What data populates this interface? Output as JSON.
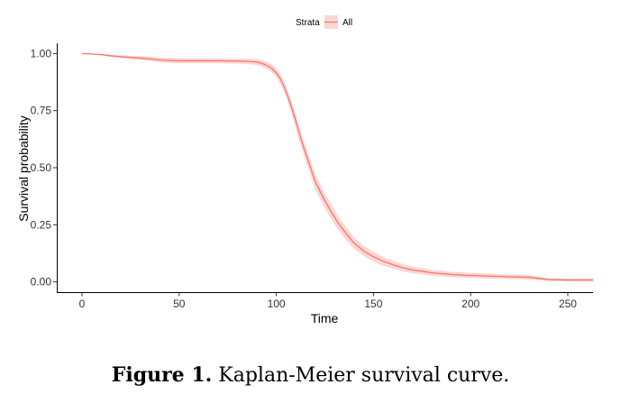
{
  "chart_data": {
    "type": "line",
    "xlabel": "Time",
    "ylabel": "Survival probability",
    "xlim": [
      -13,
      263
    ],
    "ylim": [
      -0.045,
      1.045
    ],
    "x_ticks": [
      0,
      50,
      100,
      150,
      200,
      250
    ],
    "x_tick_labels": [
      "0",
      "50",
      "100",
      "150",
      "200",
      "250"
    ],
    "y_ticks": [
      0,
      0.25,
      0.5,
      0.75,
      1
    ],
    "y_tick_labels": [
      "0.00",
      "0.25",
      "0.50",
      "0.75",
      "1.00"
    ],
    "grid": false,
    "legend": {
      "placement": "top",
      "title": "Strata",
      "entries": [
        "All"
      ]
    },
    "series": [
      {
        "name": "All",
        "color": "#f8766d",
        "band_color": "#f8766d",
        "x": [
          0,
          5,
          10,
          15,
          20,
          25,
          30,
          35,
          40,
          45,
          50,
          60,
          70,
          80,
          85,
          90,
          92,
          94,
          96,
          98,
          100,
          102,
          104,
          106,
          108,
          110,
          112,
          114,
          116,
          118,
          120,
          124,
          128,
          132,
          136,
          140,
          145,
          150,
          155,
          160,
          165,
          170,
          180,
          190,
          200,
          210,
          220,
          230,
          235,
          240,
          250,
          263
        ],
        "y": [
          1.0,
          0.998,
          0.995,
          0.99,
          0.986,
          0.983,
          0.98,
          0.977,
          0.972,
          0.97,
          0.968,
          0.968,
          0.968,
          0.967,
          0.966,
          0.963,
          0.958,
          0.952,
          0.944,
          0.932,
          0.915,
          0.89,
          0.855,
          0.81,
          0.76,
          0.705,
          0.645,
          0.59,
          0.54,
          0.49,
          0.44,
          0.37,
          0.31,
          0.255,
          0.21,
          0.17,
          0.135,
          0.11,
          0.09,
          0.075,
          0.062,
          0.052,
          0.04,
          0.032,
          0.028,
          0.025,
          0.022,
          0.02,
          0.015,
          0.01,
          0.008,
          0.008
        ],
        "lower": [
          1.0,
          0.996,
          0.991,
          0.985,
          0.98,
          0.976,
          0.972,
          0.968,
          0.962,
          0.959,
          0.957,
          0.957,
          0.957,
          0.956,
          0.954,
          0.95,
          0.944,
          0.937,
          0.928,
          0.915,
          0.896,
          0.869,
          0.832,
          0.785,
          0.733,
          0.676,
          0.615,
          0.559,
          0.508,
          0.457,
          0.407,
          0.337,
          0.278,
          0.225,
          0.182,
          0.145,
          0.112,
          0.089,
          0.071,
          0.058,
          0.046,
          0.037,
          0.027,
          0.02,
          0.017,
          0.014,
          0.012,
          0.01,
          0.007,
          0.004,
          0.002,
          0.002
        ],
        "upper": [
          1.0,
          1.0,
          0.999,
          0.995,
          0.992,
          0.99,
          0.988,
          0.986,
          0.982,
          0.981,
          0.979,
          0.979,
          0.979,
          0.978,
          0.978,
          0.976,
          0.972,
          0.967,
          0.96,
          0.949,
          0.934,
          0.911,
          0.878,
          0.835,
          0.787,
          0.734,
          0.675,
          0.621,
          0.572,
          0.523,
          0.473,
          0.403,
          0.342,
          0.285,
          0.238,
          0.195,
          0.158,
          0.131,
          0.109,
          0.092,
          0.078,
          0.067,
          0.053,
          0.044,
          0.039,
          0.036,
          0.032,
          0.03,
          0.023,
          0.016,
          0.014,
          0.014
        ]
      }
    ]
  },
  "caption": {
    "label": "Figure 1.",
    "text": "Kaplan-Meier survival curve."
  }
}
